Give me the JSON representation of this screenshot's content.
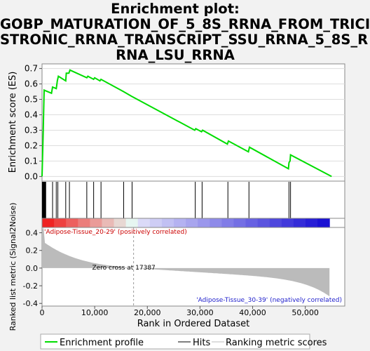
{
  "title_lines": [
    "Enrichment plot:",
    "GOBP_MATURATION_OF_5_8S_RRNA_FROM_TRICI",
    "STRONIC_RRNA_TRANSCRIPT_SSU_RRNA_5_8S_R",
    "RNA_LSU_RRNA"
  ],
  "colors": {
    "curve": "#00dd00",
    "hits": "#000000",
    "metric": "#bbbbbb",
    "pos_label": "#cc0000",
    "neg_label": "#2222cc"
  },
  "chart_data": {
    "type": "line",
    "es_panel": {
      "ylabel": "Enrichment score (ES)",
      "yticks": [
        "0.0",
        "0.1",
        "0.2",
        "0.3",
        "0.4",
        "0.5",
        "0.6",
        "0.7"
      ],
      "ylim": [
        -0.03,
        0.73
      ],
      "curve": [
        [
          0,
          0
        ],
        [
          200,
          0.26
        ],
        [
          400,
          0.56
        ],
        [
          1800,
          0.54
        ],
        [
          2000,
          0.58
        ],
        [
          2700,
          0.57
        ],
        [
          2900,
          0.62
        ],
        [
          3100,
          0.65
        ],
        [
          4500,
          0.62
        ],
        [
          4600,
          0.67
        ],
        [
          5100,
          0.67
        ],
        [
          5300,
          0.69
        ],
        [
          8500,
          0.64
        ],
        [
          8700,
          0.65
        ],
        [
          9800,
          0.63
        ],
        [
          10000,
          0.64
        ],
        [
          11000,
          0.62
        ],
        [
          11200,
          0.63
        ],
        [
          15500,
          0.55
        ],
        [
          17000,
          0.52
        ],
        [
          29000,
          0.3
        ],
        [
          29200,
          0.31
        ],
        [
          30300,
          0.29
        ],
        [
          30500,
          0.3
        ],
        [
          35200,
          0.21
        ],
        [
          35400,
          0.23
        ],
        [
          39200,
          0.16
        ],
        [
          39400,
          0.19
        ],
        [
          46800,
          0.05
        ],
        [
          46900,
          0.09
        ],
        [
          47100,
          0.1
        ],
        [
          47200,
          0.14
        ],
        [
          55000,
          0
        ]
      ]
    },
    "hits": [
      60,
      120,
      180,
      240,
      300,
      360,
      420,
      480,
      540,
      600,
      700,
      2000,
      2700,
      3000,
      4500,
      5200,
      8500,
      9800,
      11200,
      15500,
      17100,
      29100,
      30400,
      35300,
      39300,
      46900,
      47200
    ],
    "metric_panel": {
      "ylabel": "Ranked list metric (Signal2Noise)",
      "yticks": [
        "0.4",
        "0.2",
        "0.0",
        "-0.2",
        "-0.4"
      ],
      "ylim": [
        -0.43,
        0.46
      ],
      "pos_label": "'Adipose-Tissue_20-29' (positively correlated)",
      "neg_label": "'Adipose-Tissue_30-39' (negatively correlated)",
      "zero_cross_label": "Zero cross at 17387",
      "zero_cross": 17387
    },
    "xlabel": "Rank in Ordered Dataset",
    "xticks": [
      "0",
      "10,000",
      "20,000",
      "30,000",
      "40,000",
      "50,000"
    ],
    "xlim": [
      0,
      57500
    ],
    "n": 54600
  },
  "legend": {
    "items": [
      "Enrichment profile",
      "Hits",
      "Ranking metric scores"
    ]
  }
}
